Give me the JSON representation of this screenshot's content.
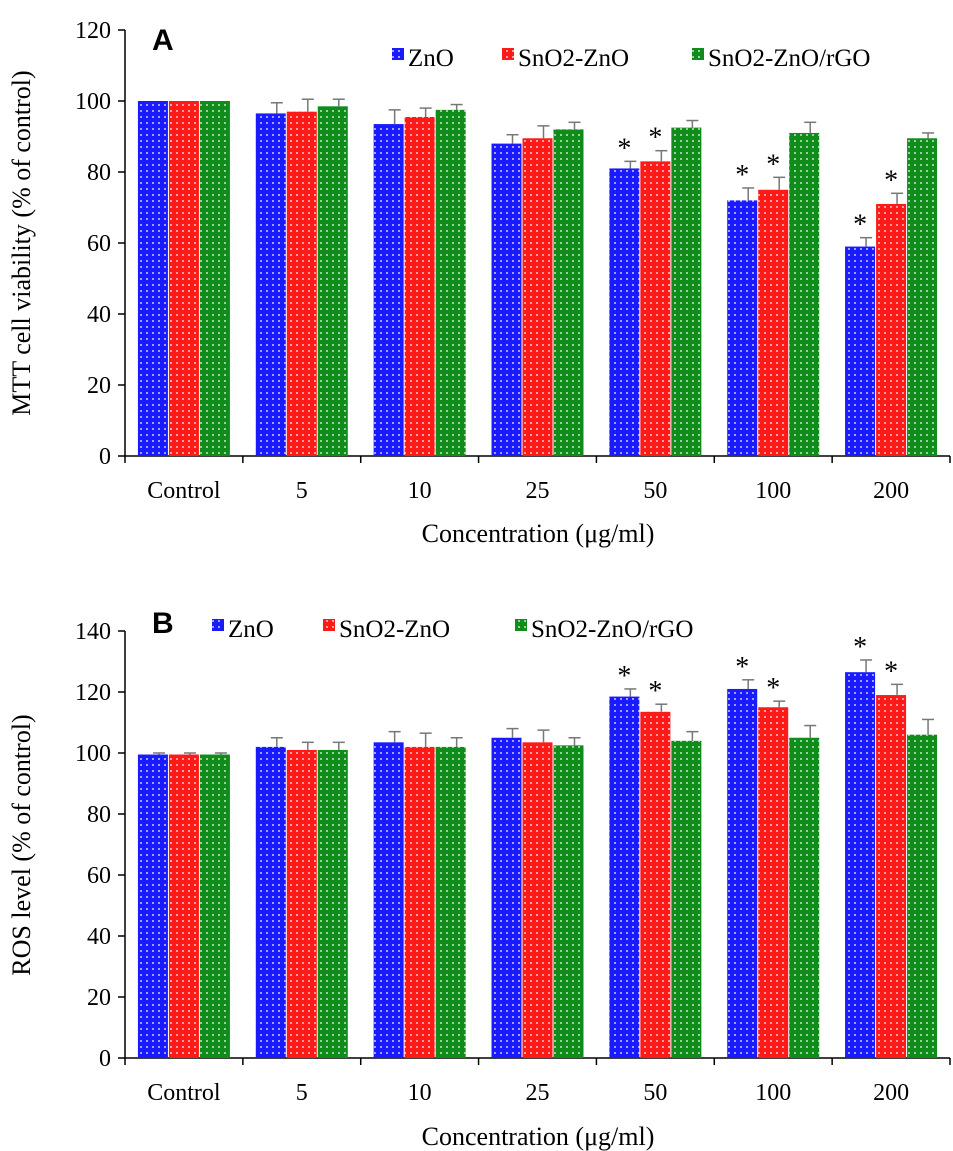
{
  "colors": {
    "ZnO": "#1a1aff",
    "SnO2-ZnO": "#ff1a1a",
    "SnO2-ZnO/rGO": "#0f8c1a",
    "dots": "#ffffff"
  },
  "chart_data": [
    {
      "type": "bar",
      "panel_label": "A",
      "title": "",
      "xlabel": "Concentration  (μg/ml)",
      "ylabel": "MTT  cell  viability  (% of control)",
      "ylim": [
        0,
        120
      ],
      "yticks": [
        "0",
        "20",
        "40",
        "60",
        "80",
        "100",
        "120"
      ],
      "categories": [
        "Control",
        "5",
        "10",
        "25",
        "50",
        "100",
        "200"
      ],
      "legend_position": "top-right",
      "grid": false,
      "series": [
        {
          "name": "ZnO",
          "values": [
            100,
            96.5,
            93.5,
            88,
            81,
            72,
            59
          ],
          "errors": [
            0,
            3,
            4,
            2.5,
            2,
            3.5,
            2.5
          ],
          "significant": [
            false,
            false,
            false,
            false,
            true,
            true,
            true
          ]
        },
        {
          "name": "SnO2-ZnO",
          "values": [
            100,
            97,
            95.5,
            89.5,
            83,
            75,
            71
          ],
          "errors": [
            0,
            3.5,
            2.5,
            3.5,
            3,
            3.5,
            3
          ],
          "significant": [
            false,
            false,
            false,
            false,
            true,
            true,
            true
          ]
        },
        {
          "name": "SnO2-ZnO/rGO",
          "values": [
            100,
            98.5,
            97.5,
            92,
            92.5,
            91,
            89.5
          ],
          "errors": [
            0,
            2,
            1.5,
            2,
            2,
            3,
            1.5
          ],
          "significant": [
            false,
            false,
            false,
            false,
            false,
            false,
            false
          ]
        }
      ],
      "significance_marker": "*"
    },
    {
      "type": "bar",
      "panel_label": "B",
      "title": "",
      "xlabel": "Concentration  (μg/ml)",
      "ylabel": "ROS level  (% of control)",
      "ylim": [
        0,
        140
      ],
      "yticks": [
        "0",
        "20",
        "40",
        "60",
        "80",
        "100",
        "120",
        "140"
      ],
      "categories": [
        "Control",
        "5",
        "10",
        "25",
        "50",
        "100",
        "200"
      ],
      "legend_position": "top",
      "grid": false,
      "series": [
        {
          "name": "ZnO",
          "values": [
            99.5,
            102,
            103.5,
            105,
            118.5,
            121,
            126.5
          ],
          "errors": [
            0.5,
            3,
            3.5,
            3,
            2.5,
            3,
            4
          ],
          "significant": [
            false,
            false,
            false,
            false,
            true,
            true,
            true
          ]
        },
        {
          "name": "SnO2-ZnO",
          "values": [
            99.5,
            101,
            102,
            103.5,
            113.5,
            115,
            119
          ],
          "errors": [
            0.5,
            2.5,
            4.5,
            4,
            2.5,
            2,
            3.5
          ],
          "significant": [
            false,
            false,
            false,
            false,
            true,
            true,
            true
          ]
        },
        {
          "name": "SnO2-ZnO/rGO",
          "values": [
            99.5,
            101,
            102,
            102.5,
            104,
            105,
            106
          ],
          "errors": [
            0.5,
            2.5,
            3,
            2.5,
            3,
            4,
            5
          ],
          "significant": [
            false,
            false,
            false,
            false,
            false,
            false,
            false
          ]
        }
      ],
      "significance_marker": "*"
    }
  ]
}
